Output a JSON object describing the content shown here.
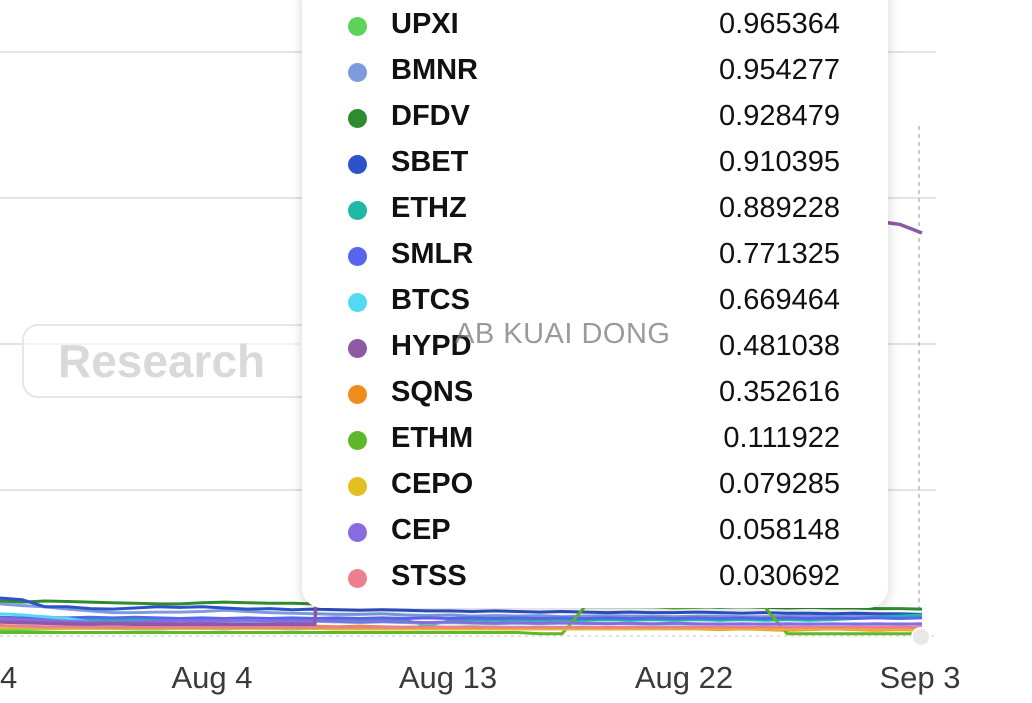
{
  "chart_data": {
    "type": "line",
    "title": "",
    "xlabel": "",
    "ylabel": "",
    "x_ticks": [
      "4",
      "Aug 4",
      "Aug 13",
      "Aug 22",
      "Sep 3"
    ],
    "grid": true,
    "legend": "tooltip",
    "series": [
      {
        "name": "UPXI",
        "color": "#5dd35a",
        "value": "0.965364",
        "values": [
          0.01,
          0.011,
          0.012,
          0.013,
          0.014,
          0.013,
          0.012,
          0.012,
          0.013,
          0.013,
          0.012,
          0.014,
          0.013,
          0.012,
          0.013,
          0.012,
          0.013,
          0.013,
          0.012,
          0.012,
          0.013,
          0.012,
          0.013,
          0.012,
          0.014,
          0.013,
          0.012,
          0.013,
          0.012,
          0.013,
          0.012,
          0.013,
          0.013,
          0.012,
          0.013,
          0.013,
          0.014,
          0.013,
          0.013,
          0.013,
          0.014,
          0.014
        ]
      },
      {
        "name": "BMNR",
        "color": "#7e9be0",
        "value": "0.954277",
        "values": [
          0.055,
          0.052,
          0.05,
          0.046,
          0.043,
          0.04,
          0.04,
          0.041,
          0.041,
          0.042,
          0.044,
          0.042,
          0.04,
          0.039,
          0.038,
          0.037,
          0.037,
          0.038,
          0.036,
          0.035,
          0.036,
          0.034,
          0.035,
          0.034,
          0.035,
          0.033,
          0.034,
          0.035,
          0.034,
          0.034,
          0.033,
          0.034,
          0.034,
          0.033,
          0.033,
          0.034,
          0.034,
          0.035,
          0.035,
          0.034,
          0.035,
          0.035
        ]
      },
      {
        "name": "DFDV",
        "color": "#2e8b2e",
        "value": "0.928479",
        "values": [
          0.06,
          0.058,
          0.06,
          0.059,
          0.058,
          0.057,
          0.056,
          0.055,
          0.055,
          0.057,
          0.058,
          0.057,
          0.056,
          0.056,
          0.055,
          0.056,
          0.055,
          0.054,
          0.055,
          0.054,
          0.053,
          0.054,
          0.053,
          0.052,
          0.053,
          0.052,
          0.051,
          0.052,
          0.051,
          0.05,
          0.051,
          0.05,
          0.049,
          0.05,
          0.049,
          0.048,
          0.049,
          0.048,
          0.048,
          0.047,
          0.047,
          0.046
        ]
      },
      {
        "name": "SBET",
        "color": "#2e52c8",
        "value": "0.910395",
        "values": [
          0.065,
          0.062,
          0.05,
          0.05,
          0.047,
          0.046,
          0.048,
          0.05,
          0.049,
          0.05,
          0.048,
          0.046,
          0.047,
          0.045,
          0.046,
          0.045,
          0.044,
          0.045,
          0.044,
          0.043,
          0.043,
          0.042,
          0.043,
          0.042,
          0.041,
          0.042,
          0.041,
          0.04,
          0.041,
          0.04,
          0.04,
          0.041,
          0.04,
          0.039,
          0.04,
          0.039,
          0.039,
          0.038,
          0.039,
          0.038,
          0.038,
          0.037
        ]
      },
      {
        "name": "ETHZ",
        "color": "#1fb8a2",
        "value": "0.889228",
        "values": [
          0.028,
          0.027,
          0.028,
          0.027,
          0.028,
          0.027,
          0.028,
          0.027,
          0.028,
          0.027,
          0.026,
          0.028,
          0.027,
          0.028,
          0.027,
          0.028,
          0.027,
          0.028,
          0.027,
          0.018,
          0.026,
          0.028,
          0.027,
          0.028,
          0.027,
          0.028,
          0.027,
          0.028,
          0.027,
          0.028,
          0.027,
          0.028,
          0.027,
          0.028,
          0.027,
          0.028,
          0.027,
          0.028,
          0.03,
          0.032,
          0.034,
          0.036
        ]
      },
      {
        "name": "SMLR",
        "color": "#5865ee",
        "value": "0.771325",
        "values": [
          0.032,
          0.031,
          0.032,
          0.031,
          0.032,
          0.031,
          0.032,
          0.031,
          0.03,
          0.031,
          0.03,
          0.031,
          0.03,
          0.031,
          0.03,
          0.031,
          0.03,
          0.031,
          0.03,
          0.031,
          0.03,
          0.031,
          0.03,
          0.031,
          0.03,
          0.031,
          0.03,
          0.031,
          0.03,
          0.031,
          0.03,
          0.031,
          0.03,
          0.031,
          0.03,
          0.031,
          0.03,
          0.031,
          0.03,
          0.031,
          0.03,
          0.031
        ]
      },
      {
        "name": "BTCS",
        "color": "#55d8f2",
        "value": "0.669464",
        "values": [
          0.038,
          0.036,
          0.033,
          0.03,
          0.024,
          0.022,
          0.021,
          0.02,
          0.019,
          0.02,
          0.021,
          0.022,
          0.023,
          0.024,
          0.025,
          0.024,
          0.023,
          0.024,
          0.023,
          0.022,
          0.023,
          0.022,
          0.021,
          0.022,
          0.021,
          0.022,
          0.021,
          0.022,
          0.021,
          0.02,
          0.021,
          0.02,
          0.021,
          0.02,
          0.021,
          0.02,
          0.021,
          0.02,
          0.021,
          0.02,
          0.021,
          0.02
        ]
      },
      {
        "name": "HYPD",
        "color": "#8e5aa6",
        "value": "0.481038",
        "values": [
          0.024,
          0.023,
          0.022,
          0.021,
          0.02,
          0.021,
          0.02,
          0.02,
          0.02,
          0.02,
          0.02,
          0.02,
          0.02,
          0.02,
          0.02,
          0.76,
          0.76,
          0.76,
          0.765,
          0.775,
          0.785,
          0.79,
          0.8,
          0.795,
          0.79,
          0.785,
          0.78,
          0.775,
          0.77,
          0.765,
          0.76,
          0.75,
          0.745,
          0.74,
          0.735,
          0.73,
          0.725,
          0.72,
          0.715,
          0.71,
          0.705,
          0.69
        ]
      },
      {
        "name": "SQNS",
        "color": "#f08c1c",
        "value": "0.352616",
        "values": [
          0.025,
          0.024,
          0.023,
          0.022,
          0.021,
          0.02,
          0.021,
          0.022,
          0.021,
          0.02,
          0.019,
          0.018,
          0.017,
          0.018,
          0.017,
          0.016,
          0.017,
          0.016,
          0.015,
          0.016,
          0.015,
          0.016,
          0.015,
          0.014,
          0.015,
          0.014,
          0.013,
          0.014,
          0.013,
          0.012,
          0.013,
          0.012,
          0.011,
          0.012,
          0.011,
          0.01,
          0.011,
          0.012,
          0.011,
          0.01,
          0.011,
          0.01
        ]
      },
      {
        "name": "ETHM",
        "color": "#5fb82a",
        "value": "0.111922",
        "values": [
          0.006,
          0.006,
          0.006,
          0.006,
          0.006,
          0.006,
          0.006,
          0.006,
          0.006,
          0.006,
          0.006,
          0.006,
          0.006,
          0.006,
          0.006,
          0.006,
          0.006,
          0.006,
          0.006,
          0.006,
          0.006,
          0.006,
          0.006,
          0.006,
          0.004,
          0.004,
          0.05,
          0.05,
          0.05,
          0.05,
          0.048,
          0.049,
          0.05,
          0.05,
          0.05,
          0.004,
          0.004,
          0.004,
          0.004,
          0.004,
          0.004,
          0.004
        ]
      },
      {
        "name": "CEPO",
        "color": "#e3bf24",
        "value": "0.079285",
        "values": [
          0.014,
          0.014,
          0.013,
          0.013,
          0.013,
          0.013,
          0.013,
          0.013,
          0.013,
          0.013,
          0.013,
          0.013,
          0.013,
          0.013,
          0.013,
          0.012,
          0.012,
          0.012,
          0.012,
          0.012,
          0.012,
          0.012,
          0.012,
          0.012,
          0.012,
          0.012,
          0.012,
          0.012,
          0.012,
          0.012,
          0.012,
          0.012,
          0.012,
          0.012,
          0.012,
          0.012,
          0.012,
          0.012,
          0.012,
          0.012,
          0.012,
          0.012
        ]
      },
      {
        "name": "CEP",
        "color": "#8a6ce2",
        "value": "0.058148",
        "values": [
          0.03,
          0.028,
          0.027,
          0.025,
          0.024,
          0.023,
          0.024,
          0.025,
          0.026,
          0.025,
          0.026,
          0.027,
          0.026,
          0.025,
          0.026,
          0.025,
          0.024,
          0.025,
          0.024,
          0.023,
          0.024,
          0.023,
          0.022,
          0.023,
          0.022,
          0.023,
          0.022,
          0.021,
          0.022,
          0.021,
          0.022,
          0.021,
          0.02,
          0.021,
          0.02,
          0.021,
          0.02,
          0.021,
          0.02,
          0.021,
          0.02,
          0.021
        ]
      },
      {
        "name": "STSS",
        "color": "#ee7f91",
        "value": "0.030692",
        "values": [
          0.018,
          0.017,
          0.016,
          0.016,
          0.015,
          0.015,
          0.015,
          0.015,
          0.015,
          0.015,
          0.015,
          0.015,
          0.015,
          0.015,
          0.015,
          0.015,
          0.015,
          0.015,
          0.015,
          0.015,
          0.015,
          0.015,
          0.015,
          0.015,
          0.015,
          0.015,
          0.015,
          0.015,
          0.015,
          0.015,
          0.015,
          0.015,
          0.015,
          0.015,
          0.015,
          0.015,
          0.015,
          0.015,
          0.015,
          0.015,
          0.015,
          0.015
        ]
      }
    ]
  },
  "overlay": {
    "research_label": "Research",
    "watermark": "AB KUAI DONG"
  }
}
